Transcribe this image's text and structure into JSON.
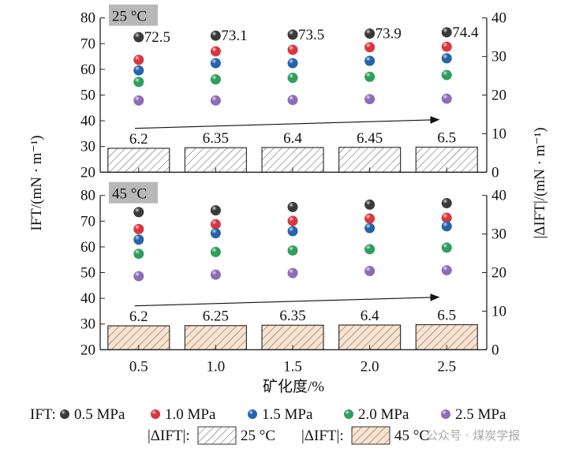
{
  "chart_data": [
    {
      "type": "scatter+bar",
      "panel_label": "25 °C",
      "x": [
        0.5,
        1.0,
        1.5,
        2.0,
        2.5
      ],
      "series": [
        {
          "name": "0.5 MPa",
          "color": "#3a3a3a",
          "values": [
            72.5,
            73.1,
            73.5,
            73.9,
            74.4
          ],
          "labels": [
            "72.5",
            "73.1",
            "73.5",
            "73.9",
            "74.4"
          ]
        },
        {
          "name": "1.0 MPa",
          "color": "#d9363e",
          "values": [
            63.7,
            67.0,
            67.6,
            68.6,
            68.8
          ]
        },
        {
          "name": "1.5 MPa",
          "color": "#2563ad",
          "values": [
            59.6,
            62.4,
            62.4,
            63.3,
            64.3
          ]
        },
        {
          "name": "2.0 MPa",
          "color": "#2e9e5b",
          "values": [
            55.1,
            56.1,
            56.7,
            57.1,
            57.8
          ]
        },
        {
          "name": "2.5 MPa",
          "color": "#8e6bb8",
          "values": [
            47.9,
            47.9,
            48.1,
            48.4,
            48.6
          ]
        }
      ],
      "bars": {
        "name": "25 °C",
        "values": [
          6.2,
          6.35,
          6.4,
          6.45,
          6.5
        ],
        "labels": [
          "6.2",
          "6.35",
          "6.4",
          "6.45",
          "6.5"
        ],
        "fill": "#ffffff"
      }
    },
    {
      "type": "scatter+bar",
      "panel_label": "45 °C",
      "x": [
        0.5,
        1.0,
        1.5,
        2.0,
        2.5
      ],
      "series": [
        {
          "name": "0.5 MPa",
          "color": "#3a3a3a",
          "values": [
            73.5,
            74.2,
            75.5,
            76.4,
            77.0
          ]
        },
        {
          "name": "1.0 MPa",
          "color": "#d9363e",
          "values": [
            66.9,
            68.8,
            70.1,
            71.0,
            71.3
          ]
        },
        {
          "name": "1.5 MPa",
          "color": "#2563ad",
          "values": [
            62.8,
            65.3,
            66.1,
            67.3,
            68.0
          ]
        },
        {
          "name": "2.0 MPa",
          "color": "#2e9e5b",
          "values": [
            57.3,
            58.0,
            58.6,
            59.1,
            59.7
          ]
        },
        {
          "name": "2.5 MPa",
          "color": "#8e6bb8",
          "values": [
            48.6,
            49.2,
            49.8,
            50.6,
            50.9
          ]
        }
      ],
      "bars": {
        "name": "45 °C",
        "values": [
          6.2,
          6.25,
          6.35,
          6.4,
          6.5
        ],
        "labels": [
          "6.2",
          "6.25",
          "6.35",
          "6.4",
          "6.5"
        ],
        "fill": "#fbe3cf"
      }
    }
  ],
  "axes": {
    "xlim": [
      0.25,
      2.76
    ],
    "ylim_left": [
      20,
      80
    ],
    "ylim_right": [
      0,
      40
    ],
    "x_ticks": [
      "0.5",
      "1.0",
      "1.5",
      "2.0",
      "2.5"
    ],
    "y_left_ticks": [
      "20",
      "30",
      "40",
      "50",
      "60",
      "70",
      "80"
    ],
    "y_right_ticks": [
      "0",
      "10",
      "20",
      "30",
      "40"
    ],
    "xlabel": "矿化度/%",
    "ylabel_left": "IFT/(mN · m⁻¹)",
    "ylabel_right": "|ΔIFT|/(mN · m⁻¹)"
  },
  "legend": {
    "prefix": "IFT:",
    "bar_prefix": "|ΔIFT|:",
    "items": [
      "0.5 MPa",
      "1.0 MPa",
      "1.5 MPa",
      "2.0 MPa",
      "2.5 MPa"
    ],
    "bar_items": [
      "25 °C",
      "45 °C"
    ]
  },
  "watermark": "公众号 · 煤炭学报"
}
